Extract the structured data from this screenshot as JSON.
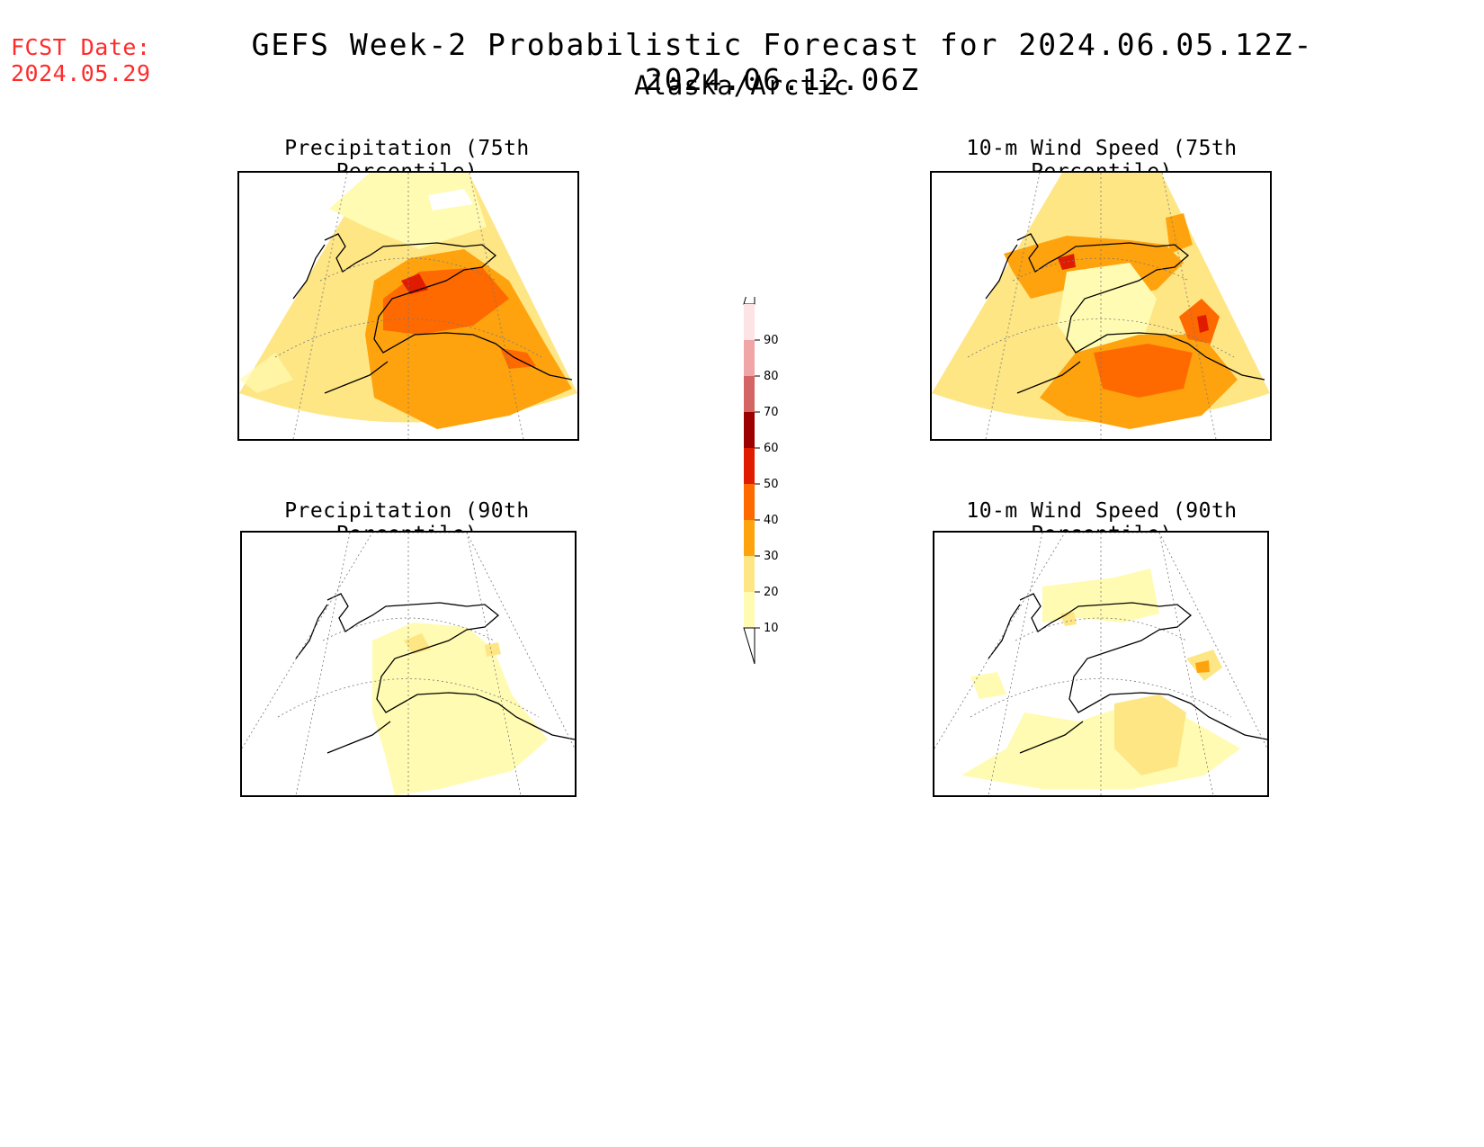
{
  "header": {
    "fcst_label": "FCST Date:",
    "fcst_date": "2024.05.29",
    "title": "GEFS Week-2 Probabilistic Forecast for 2024.06.05.12Z-2024.06.12.06Z",
    "subtitle": "Alaska/Arctic"
  },
  "panels": [
    {
      "title": "Precipitation (75th Percentile)"
    },
    {
      "title": "10-m Wind Speed (75th Percentile)"
    },
    {
      "title": "Precipitation (90th Percentile)"
    },
    {
      "title": "10-m Wind Speed (90th Percentile)"
    }
  ],
  "legend": {
    "levels": [
      "10",
      "20",
      "30",
      "40",
      "50",
      "60",
      "70",
      "80",
      "90"
    ],
    "colors": [
      "#fffbb2",
      "#fee685",
      "#fea30e",
      "#fe6a00",
      "#e01c00",
      "#9d0000",
      "#d46565",
      "#f0a6a6",
      "#fde3e3"
    ]
  }
}
